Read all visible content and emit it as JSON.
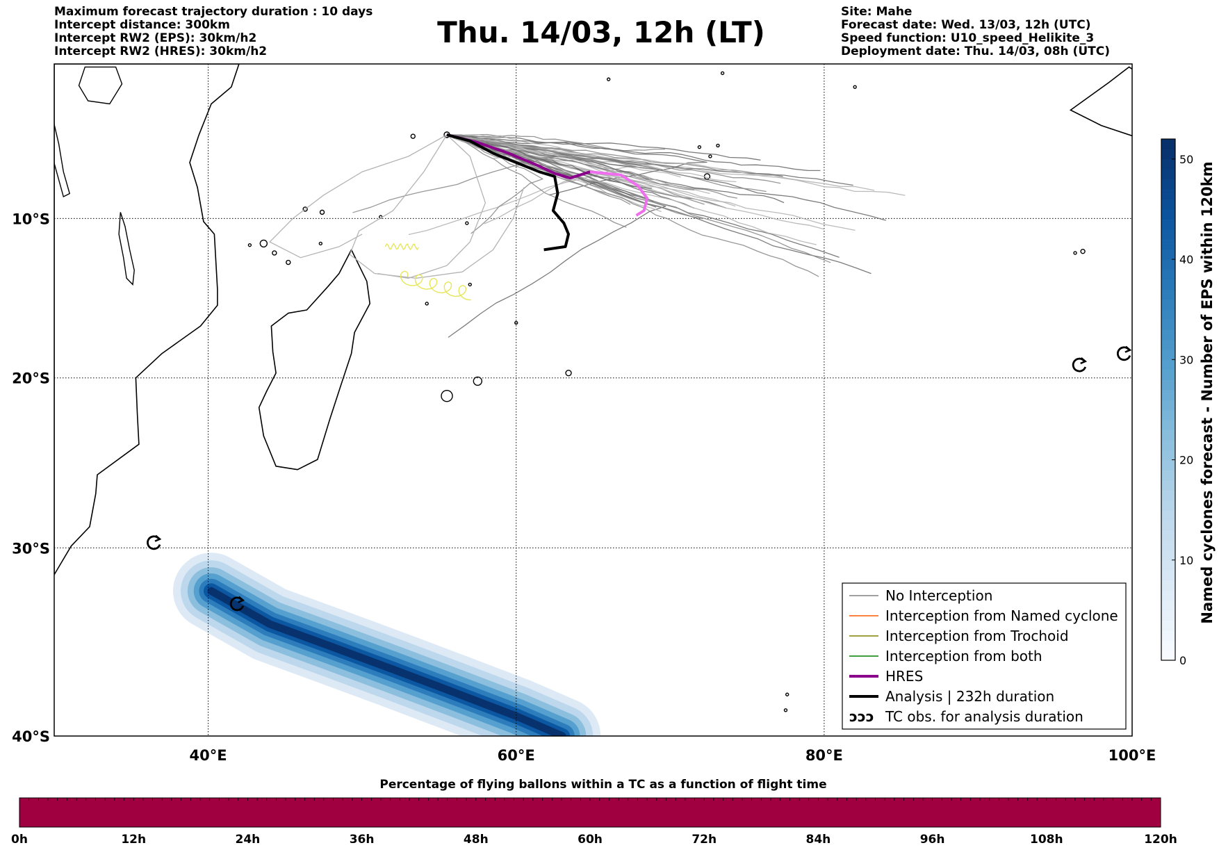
{
  "header": {
    "left": [
      "Maximum forecast trajectory duration : 10 days",
      "Intercept distance: 300km",
      "Intercept RW2 (EPS):  30km/h2",
      "Intercept RW2 (HRES): 30km/h2"
    ],
    "title": "Thu. 14/03, 12h (LT)",
    "right": [
      "Site: Mahe",
      "Forecast date: Wed. 13/03, 12h (UTC)",
      "Speed function: U10_speed_Helikite_3",
      "Deployment date: Thu. 14/03, 08h (UTC)"
    ]
  },
  "map": {
    "lon_range": [
      30,
      100
    ],
    "lat_range": [
      0,
      -40
    ],
    "lon_ticks": [
      {
        "v": 40,
        "label": "40°E"
      },
      {
        "v": 60,
        "label": "60°E"
      },
      {
        "v": 80,
        "label": "80°E"
      },
      {
        "v": 100,
        "label": "100°E"
      }
    ],
    "lat_ticks": [
      {
        "v": -10,
        "label": "10°S"
      },
      {
        "v": -20,
        "label": "20°S"
      },
      {
        "v": -30,
        "label": "30°S"
      },
      {
        "v": -40,
        "label": "40°S"
      }
    ],
    "gridlines": true,
    "colors": {
      "no_interception": "#808080",
      "named_cyclone": "#ff5a00",
      "trochoid": "#808000",
      "both": "#008000",
      "hres": "#8b008b",
      "hres_late": "#ee6eee",
      "analysis": "#000000",
      "yellow": "#e6e65a"
    },
    "launch_site": {
      "lon": 55.5,
      "lat": -4.6
    },
    "analysis_track": [
      [
        55.5,
        -4.6
      ],
      [
        57.0,
        -5.0
      ],
      [
        58.5,
        -5.8
      ],
      [
        60.0,
        -6.4
      ],
      [
        61.5,
        -7.0
      ],
      [
        62.5,
        -7.3
      ],
      [
        62.7,
        -8.4
      ],
      [
        62.4,
        -9.5
      ],
      [
        63.1,
        -10.3
      ],
      [
        63.4,
        -11.0
      ],
      [
        63.2,
        -11.8
      ],
      [
        61.8,
        -12.0
      ]
    ],
    "hres_track": [
      [
        55.5,
        -4.6
      ],
      [
        57.5,
        -5.1
      ],
      [
        59.5,
        -5.8
      ],
      [
        61.2,
        -6.5
      ],
      [
        62.5,
        -7.1
      ],
      [
        63.5,
        -7.4
      ],
      [
        64.8,
        -7.0
      ],
      [
        66.8,
        -7.2
      ],
      [
        67.9,
        -7.9
      ],
      [
        68.5,
        -8.7
      ],
      [
        68.3,
        -9.5
      ],
      [
        67.8,
        -9.8
      ]
    ],
    "tc_observations": [
      {
        "lon": 41.9,
        "lat": -33.1
      },
      {
        "lon": 36.5,
        "lat": -29.7
      },
      {
        "lon": 96.6,
        "lat": -19.2
      },
      {
        "lon": 99.5,
        "lat": -18.5
      }
    ]
  },
  "density_colorbar": {
    "label": "Named cyclones forecast - Number of EPS within 120km",
    "ticks": [
      0,
      10,
      20,
      30,
      40,
      50
    ],
    "max": 52,
    "colors": [
      "#f7fbff",
      "#dbe9f6",
      "#bad6eb",
      "#89bedc",
      "#539ecd",
      "#2b7bba",
      "#0b559f",
      "#08306b"
    ],
    "density_axis": [
      [
        40.2,
        -32.4
      ],
      [
        44,
        -34.2
      ],
      [
        48,
        -35.4
      ],
      [
        52,
        -36.6
      ],
      [
        56,
        -37.8
      ],
      [
        60,
        -39.0
      ],
      [
        63,
        -40.0
      ]
    ]
  },
  "legend": {
    "items": [
      {
        "label": "No Interception",
        "color": "#808080",
        "width": 1.5
      },
      {
        "label": "Interception from Named cyclone",
        "color": "#ff5a00",
        "width": 1.5
      },
      {
        "label": "Interception from Trochoid",
        "color": "#808000",
        "width": 1.5
      },
      {
        "label": "Interception from both",
        "color": "#008000",
        "width": 1.5
      },
      {
        "label": "HRES",
        "color": "#8b008b",
        "width": 4
      },
      {
        "label": "Analysis | 232h duration",
        "color": "#000000",
        "width": 4
      }
    ],
    "tc_label": "TC obs. for analysis duration",
    "tc_symbol": "ↄↄↄ"
  },
  "bottom_bar": {
    "title": "Percentage of flying ballons within a TC as a function of flight time",
    "color": "#a0003f",
    "ticks": [
      "0h",
      "12h",
      "24h",
      "36h",
      "48h",
      "60h",
      "72h",
      "84h",
      "96h",
      "108h",
      "120h"
    ]
  }
}
